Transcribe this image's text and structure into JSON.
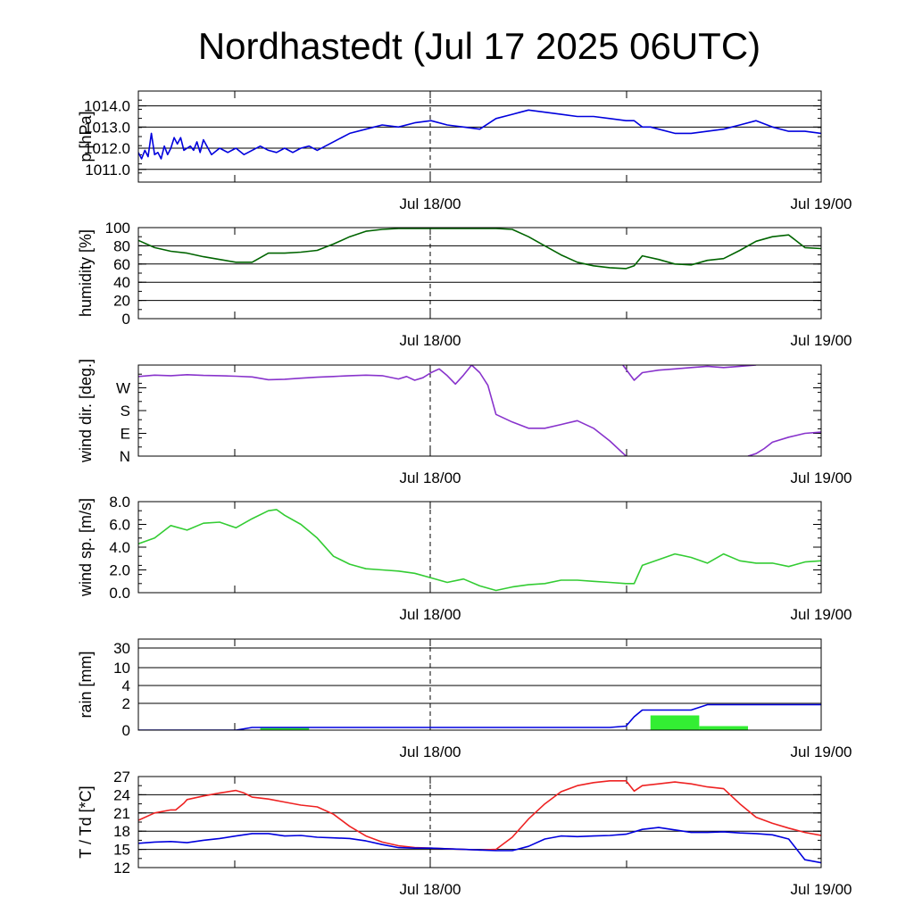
{
  "title": "Nordhastedt (Jul 17 2025 06UTC)",
  "x_tick_labels": [
    "Jul 18/00",
    "Jul 19/00"
  ],
  "chart_data": [
    {
      "type": "line",
      "ylabel": "p [hPa]",
      "ylim": [
        1010.4,
        1014.7
      ],
      "yticks": [
        1011,
        1012,
        1013,
        1014
      ],
      "ytick_labels": [
        "1011.0",
        "1012.0",
        "1013.0",
        "1014.0"
      ],
      "xlim": [
        0,
        42
      ],
      "grid": true,
      "series": [
        {
          "color": "#0000dd",
          "x": [
            0,
            0.2,
            0.4,
            0.6,
            0.8,
            1.0,
            1.2,
            1.4,
            1.6,
            1.8,
            2.0,
            2.2,
            2.4,
            2.6,
            2.8,
            3.0,
            3.2,
            3.4,
            3.6,
            3.8,
            4.0,
            4.5,
            5.0,
            5.5,
            6.0,
            6.5,
            7.0,
            7.5,
            8.0,
            8.5,
            9.0,
            9.5,
            10,
            10.5,
            11,
            12,
            13,
            14,
            15,
            16,
            17,
            18,
            19,
            20,
            21,
            22,
            23,
            23.5,
            24,
            25,
            26,
            27,
            28,
            29,
            30,
            30.5,
            31,
            31.5,
            32,
            33,
            34,
            35,
            36,
            37,
            38,
            39,
            40,
            41,
            42
          ],
          "y": [
            1011.8,
            1011.5,
            1011.9,
            1011.6,
            1012.7,
            1011.7,
            1011.8,
            1011.5,
            1012.1,
            1011.7,
            1012.0,
            1012.5,
            1012.2,
            1012.5,
            1011.9,
            1012.0,
            1012.1,
            1011.9,
            1012.3,
            1011.8,
            1012.4,
            1011.7,
            1012.0,
            1011.8,
            1012.0,
            1011.7,
            1011.9,
            1012.1,
            1011.9,
            1011.8,
            1012.0,
            1011.8,
            1012.0,
            1012.1,
            1011.9,
            1012.3,
            1012.7,
            1012.9,
            1013.1,
            1013.0,
            1013.2,
            1013.3,
            1013.1,
            1013.0,
            1012.9,
            1013.4,
            1013.6,
            1013.7,
            1013.8,
            1013.7,
            1013.6,
            1013.5,
            1013.5,
            1013.4,
            1013.3,
            1013.3,
            1013.0,
            1013.0,
            1012.9,
            1012.7,
            1012.7,
            1012.8,
            1012.9,
            1013.1,
            1013.3,
            1013.0,
            1012.8,
            1012.8,
            1012.7
          ]
        }
      ]
    },
    {
      "type": "line",
      "ylabel": "humidity [%]",
      "ylim": [
        0,
        100
      ],
      "yticks": [
        0,
        20,
        40,
        60,
        80,
        100
      ],
      "ytick_labels": [
        "0",
        "20",
        "40",
        "60",
        "80",
        "100"
      ],
      "xlim": [
        0,
        42
      ],
      "grid": true,
      "series": [
        {
          "color": "#006400",
          "x": [
            0,
            1,
            2,
            3,
            4,
            5,
            6,
            7,
            8,
            9,
            10,
            11,
            12,
            13,
            14,
            15,
            16,
            17,
            18,
            19,
            20,
            21,
            22,
            23,
            24,
            25,
            26,
            27,
            28,
            29,
            30,
            30.5,
            31,
            32,
            33,
            34,
            35,
            36,
            37,
            38,
            39,
            40,
            41,
            42
          ],
          "y": [
            86,
            78,
            74,
            72,
            68,
            65,
            62,
            62,
            72,
            72,
            73,
            75,
            82,
            90,
            96,
            98,
            99,
            99,
            99,
            99,
            99,
            99,
            99,
            98,
            90,
            80,
            70,
            62,
            58,
            56,
            55,
            58,
            69,
            65,
            60,
            59,
            64,
            66,
            75,
            85,
            90,
            92,
            78,
            77
          ]
        }
      ]
    },
    {
      "type": "line",
      "ylabel": "wind dir. [deg.]",
      "ylim": [
        0,
        360
      ],
      "yticks": [
        0,
        90,
        180,
        270
      ],
      "ytick_labels": [
        "N",
        "E",
        "S",
        "W"
      ],
      "xlim": [
        0,
        42
      ],
      "grid": false,
      "series": [
        {
          "color": "#8833cc",
          "segments": [
            {
              "x": [
                0,
                1,
                2,
                3,
                4,
                5,
                6,
                7,
                8,
                9,
                10,
                11,
                12,
                13,
                14,
                15,
                16,
                16.5,
                17,
                17.5,
                18,
                18.5,
                19,
                19.5,
                20,
                20.5
              ],
              "y": [
                315,
                320,
                318,
                322,
                319,
                318,
                316,
                313,
                302,
                304,
                308,
                312,
                315,
                318,
                320,
                318,
                305,
                315,
                300,
                310,
                330,
                345,
                318,
                285,
                320,
                360
              ]
            },
            {
              "x": [
                20.5,
                21,
                21.5,
                22,
                23,
                24,
                25,
                26,
                27,
                28,
                29,
                30
              ],
              "y": [
                360,
                330,
                280,
                165,
                135,
                110,
                110,
                125,
                140,
                110,
                60,
                0
              ]
            },
            {
              "x": [
                29.8,
                30.5,
                31,
                32,
                33,
                34,
                35,
                36,
                37,
                38
              ],
              "y": [
                360,
                300,
                330,
                340,
                345,
                350,
                355,
                350,
                355,
                360
              ]
            },
            {
              "x": [
                37.5,
                38,
                38.5,
                39,
                40,
                41,
                42
              ],
              "y": [
                0,
                10,
                30,
                55,
                75,
                90,
                95
              ]
            }
          ]
        }
      ]
    },
    {
      "type": "line",
      "ylabel": "wind sp. [m/s]",
      "ylim": [
        0,
        8
      ],
      "yticks": [
        0,
        2,
        4,
        6,
        8
      ],
      "ytick_labels": [
        "0.0",
        "2.0",
        "4.0",
        "6.0",
        "8.0"
      ],
      "xlim": [
        0,
        42
      ],
      "grid": false,
      "series": [
        {
          "color": "#33cc33",
          "x": [
            0,
            1,
            2,
            3,
            4,
            5,
            6,
            7,
            8,
            8.5,
            9,
            10,
            11,
            12,
            13,
            14,
            15,
            16,
            17,
            18,
            19,
            20,
            21,
            22,
            23,
            24,
            25,
            26,
            27,
            28,
            29,
            30,
            30.5,
            31,
            32,
            33,
            34,
            35,
            36,
            37,
            38,
            39,
            40,
            41,
            42
          ],
          "y": [
            4.3,
            4.8,
            5.9,
            5.5,
            6.1,
            6.2,
            5.7,
            6.5,
            7.2,
            7.3,
            6.8,
            6.0,
            4.8,
            3.2,
            2.5,
            2.1,
            2.0,
            1.9,
            1.7,
            1.3,
            0.9,
            1.2,
            0.6,
            0.2,
            0.5,
            0.7,
            0.8,
            1.1,
            1.1,
            1.0,
            0.9,
            0.8,
            0.8,
            2.4,
            2.9,
            3.4,
            3.1,
            2.6,
            3.4,
            2.8,
            2.6,
            2.6,
            2.3,
            2.7,
            2.8
          ]
        }
      ]
    },
    {
      "type": "bar",
      "ylabel": "rain [mm]",
      "yticks": [
        0,
        2,
        4,
        10,
        30
      ],
      "ytick_labels": [
        "0",
        "2",
        "4",
        "10",
        "30"
      ],
      "xlim": [
        0,
        42
      ],
      "grid": true,
      "bars": [
        {
          "x0": 7.5,
          "x1": 10.5,
          "value": 0.2
        },
        {
          "x0": 31.5,
          "x1": 34.5,
          "value": 1.1
        },
        {
          "x0": 34.5,
          "x1": 37.5,
          "value": 0.3
        }
      ],
      "bar_color": "#33ee33",
      "series": [
        {
          "color": "#0000dd",
          "x": [
            0,
            6,
            7,
            8,
            29,
            30,
            30.5,
            31,
            34,
            35,
            42
          ],
          "y": [
            0,
            0,
            0.2,
            0.2,
            0.2,
            0.3,
            1.0,
            1.5,
            1.5,
            1.9,
            1.9
          ]
        }
      ]
    },
    {
      "type": "line",
      "ylabel": "T / Td [*C]",
      "ylim": [
        12,
        27
      ],
      "yticks": [
        12,
        15,
        18,
        21,
        24,
        27
      ],
      "ytick_labels": [
        "12",
        "15",
        "18",
        "21",
        "24",
        "27"
      ],
      "xlim": [
        0,
        42
      ],
      "grid": true,
      "series": [
        {
          "color": "#ee2222",
          "x": [
            0,
            1,
            2,
            2.3,
            2.8,
            3,
            4,
            5,
            6,
            6.5,
            7,
            8,
            9,
            10,
            11,
            12,
            13,
            14,
            15,
            16,
            17,
            18,
            19,
            20,
            21,
            22,
            23,
            24,
            25,
            26,
            27,
            28,
            29,
            30,
            30.5,
            31,
            32,
            33,
            34,
            35,
            36,
            37,
            38,
            39,
            40,
            41,
            42
          ],
          "y": [
            19.8,
            21.0,
            21.5,
            21.5,
            22.6,
            23.2,
            23.8,
            24.3,
            24.7,
            24.3,
            23.6,
            23.3,
            22.8,
            22.3,
            22.0,
            20.8,
            18.8,
            17.2,
            16.2,
            15.6,
            15.3,
            15.2,
            15.1,
            15.0,
            14.9,
            15.0,
            17.0,
            20.0,
            22.5,
            24.5,
            25.5,
            26.0,
            26.3,
            26.3,
            24.6,
            25.5,
            25.8,
            26.1,
            25.8,
            25.3,
            25.0,
            22.5,
            20.3,
            19.3,
            18.5,
            17.8,
            17.3
          ]
        },
        {
          "color": "#0000dd",
          "x": [
            0,
            1,
            2,
            3,
            4,
            5,
            6,
            7,
            8,
            9,
            10,
            11,
            12,
            13,
            14,
            15,
            16,
            17,
            18,
            19,
            20,
            21,
            22,
            23,
            24,
            25,
            26,
            27,
            28,
            29,
            30,
            31,
            32,
            33,
            34,
            35,
            36,
            37,
            38,
            39,
            40,
            41,
            42
          ],
          "y": [
            16.0,
            16.2,
            16.3,
            16.1,
            16.5,
            16.8,
            17.2,
            17.6,
            17.6,
            17.2,
            17.3,
            17.0,
            16.9,
            16.8,
            16.4,
            15.8,
            15.3,
            15.2,
            15.2,
            15.1,
            15.0,
            14.9,
            14.8,
            14.8,
            15.5,
            16.7,
            17.2,
            17.1,
            17.2,
            17.3,
            17.5,
            18.3,
            18.6,
            18.2,
            17.8,
            17.8,
            17.9,
            17.7,
            17.6,
            17.4,
            16.7,
            13.3,
            12.8
          ]
        }
      ]
    }
  ]
}
